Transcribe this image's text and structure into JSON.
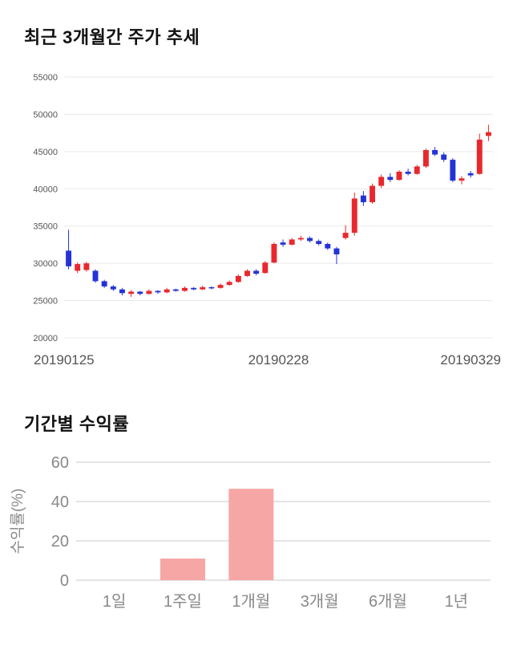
{
  "page": {
    "background": "#ffffff"
  },
  "chart_data": [
    {
      "id": "price",
      "type": "candlestick",
      "title": "최근 3개월간 주가 추세",
      "ylim": [
        20000,
        55000
      ],
      "yticks": [
        20000,
        25000,
        30000,
        35000,
        40000,
        45000,
        50000,
        55000
      ],
      "xtick_labels": [
        "20190125",
        "20190228",
        "20190329"
      ],
      "grid": true,
      "legend": "none",
      "colors": {
        "up": "#e8282d",
        "down": "#2433d6",
        "grid": "#e9e9e9",
        "tick": "#555555",
        "xlabel": "#555555"
      },
      "candle_format": [
        "open",
        "high",
        "low",
        "close"
      ],
      "candles": [
        [
          31700,
          34500,
          29200,
          29600
        ],
        [
          29000,
          30100,
          28700,
          29900
        ],
        [
          29100,
          30200,
          28900,
          30000
        ],
        [
          29000,
          29200,
          27400,
          27600
        ],
        [
          27600,
          27800,
          26700,
          26900
        ],
        [
          26900,
          27100,
          26300,
          26500
        ],
        [
          26500,
          26700,
          25700,
          26000
        ],
        [
          25900,
          26400,
          25500,
          26200
        ],
        [
          26200,
          26300,
          25700,
          25900
        ],
        [
          25900,
          26500,
          25800,
          26300
        ],
        [
          26300,
          26400,
          25900,
          26100
        ],
        [
          26100,
          26700,
          26000,
          26500
        ],
        [
          26500,
          26600,
          26200,
          26300
        ],
        [
          26300,
          26900,
          26200,
          26700
        ],
        [
          26700,
          26800,
          26400,
          26500
        ],
        [
          26500,
          27000,
          26400,
          26800
        ],
        [
          26800,
          26900,
          26500,
          26700
        ],
        [
          26700,
          27300,
          26600,
          27100
        ],
        [
          27100,
          27700,
          27000,
          27500
        ],
        [
          27500,
          28500,
          27400,
          28300
        ],
        [
          28300,
          29200,
          28200,
          29000
        ],
        [
          29000,
          29200,
          28400,
          28600
        ],
        [
          28700,
          30300,
          28600,
          30100
        ],
        [
          30100,
          32800,
          30000,
          32600
        ],
        [
          32800,
          33200,
          32200,
          32500
        ],
        [
          32500,
          33400,
          32400,
          33200
        ],
        [
          33200,
          33700,
          33000,
          33400
        ],
        [
          33400,
          33600,
          32800,
          33000
        ],
        [
          33000,
          33200,
          32400,
          32600
        ],
        [
          32600,
          32800,
          31800,
          32000
        ],
        [
          32000,
          32200,
          29900,
          31200
        ],
        [
          33400,
          35100,
          33200,
          34100
        ],
        [
          34100,
          39500,
          33700,
          38700
        ],
        [
          39100,
          39700,
          37700,
          38200
        ],
        [
          38200,
          40700,
          38000,
          40400
        ],
        [
          40400,
          41900,
          40100,
          41600
        ],
        [
          41600,
          42100,
          40900,
          41200
        ],
        [
          41200,
          42500,
          41100,
          42300
        ],
        [
          42300,
          42700,
          41800,
          42000
        ],
        [
          42000,
          43200,
          41900,
          43000
        ],
        [
          43000,
          45400,
          42800,
          45200
        ],
        [
          45200,
          45600,
          44400,
          44600
        ],
        [
          44600,
          44900,
          43600,
          43900
        ],
        [
          43900,
          44100,
          40900,
          41100
        ],
        [
          41100,
          41700,
          40600,
          41400
        ],
        [
          42100,
          42400,
          41500,
          41800
        ],
        [
          42000,
          47400,
          41900,
          46600
        ],
        [
          47100,
          48600,
          46400,
          47600
        ]
      ]
    },
    {
      "id": "returns",
      "type": "bar",
      "title": "기간별 수익률",
      "ylabel": "수익률(%)",
      "ylim": [
        0,
        60
      ],
      "yticks": [
        0,
        20,
        40,
        60
      ],
      "categories": [
        "1일",
        "1주일",
        "1개월",
        "3개월",
        "6개월",
        "1년"
      ],
      "values": [
        0,
        11,
        46.5,
        0,
        0,
        0
      ],
      "grid": true,
      "legend": "none",
      "colors": {
        "bar": "#f7a6a6",
        "grid": "#dcdcdc",
        "tick": "#898989",
        "label": "#898989"
      }
    }
  ]
}
